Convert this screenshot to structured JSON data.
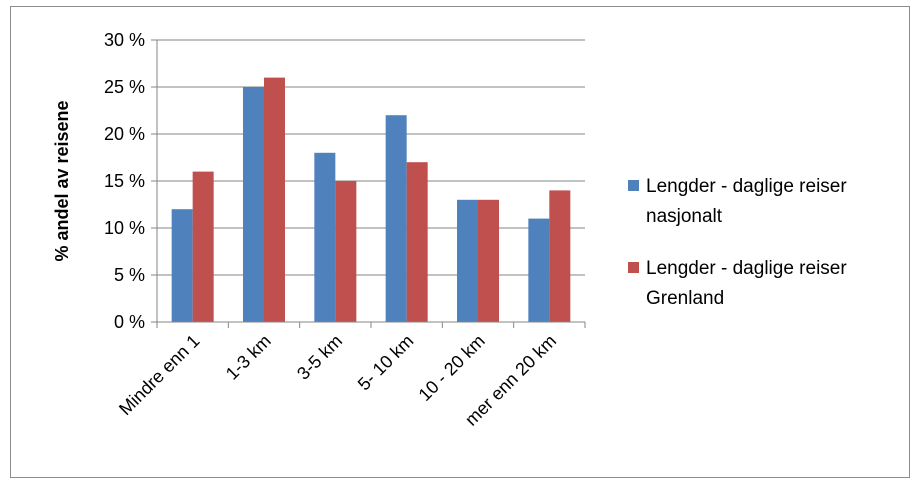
{
  "chart_data": {
    "type": "bar",
    "title": "",
    "xlabel": "",
    "ylabel": "% andel av reisene",
    "ylim": [
      0,
      30
    ],
    "yticks": [
      0,
      5,
      10,
      15,
      20,
      25,
      30
    ],
    "ytick_suffix": " %",
    "grid": true,
    "legend_position": "right",
    "categories": [
      "Mindre enn 1",
      "1-3 km",
      "3-5 km",
      "5- 10 km",
      "10 - 20 km",
      "mer enn 20 km"
    ],
    "series": [
      {
        "name": "Lengder - daglige reiser nasjonalt",
        "legend_lines": [
          "Lengder - daglige reiser",
          "nasjonalt"
        ],
        "color": "#4f81bd",
        "values": [
          12,
          25,
          18,
          22,
          13,
          11
        ]
      },
      {
        "name": "Lengder - daglige reiser Grenland",
        "legend_lines": [
          "Lengder - daglige reiser",
          "Grenland"
        ],
        "color": "#c0504d",
        "values": [
          16,
          26,
          15,
          17,
          13,
          14
        ]
      }
    ]
  }
}
